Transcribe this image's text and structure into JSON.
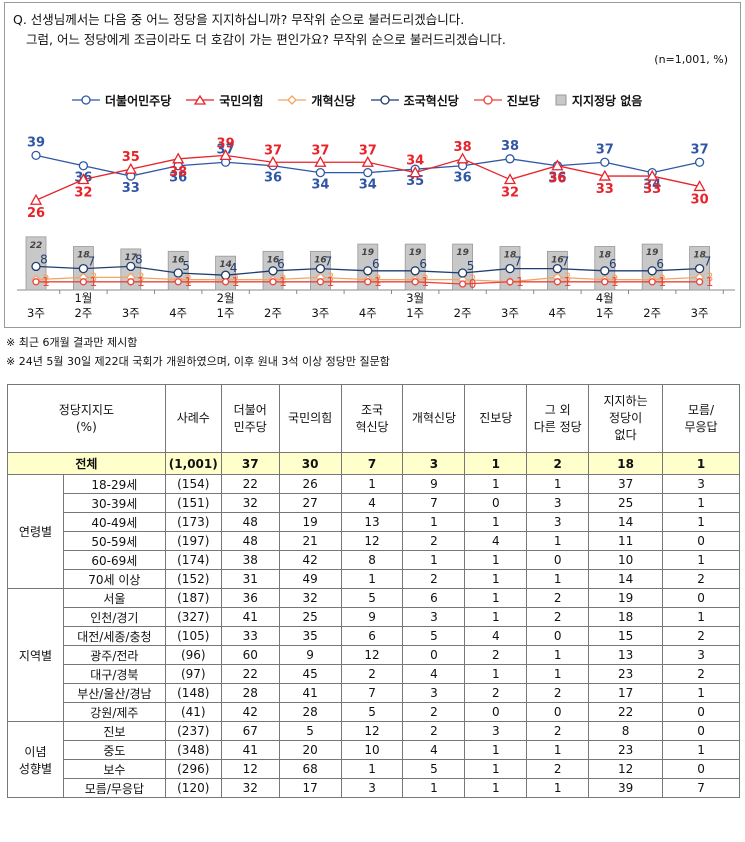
{
  "question": {
    "line1": "Q. 선생님께서는 다음 중 어느 정당을 지지하십니까? 무작위 순으로 불러드리겠습니다.",
    "line2": "그럼, 어느 정당에게 조금이라도 더 호감이 가는 편인가요? 무작위 순으로 불러드리겠습니다.",
    "sample": "(n=1,001, %)"
  },
  "colors": {
    "dem": "#2f57a5",
    "ppp": "#e8232a",
    "reform": "#f4a460",
    "rebuild": "#1f3d6e",
    "progressive": "#e8453c",
    "none": "#c8c8c8"
  },
  "chart_data": {
    "type": "line",
    "x": [
      "3주",
      "2주",
      "3주",
      "4주",
      "1주",
      "2주",
      "3주",
      "4주",
      "1주",
      "2주",
      "3주",
      "4주",
      "1주",
      "2주",
      "3주"
    ],
    "month_labels": [
      {
        "index": 1,
        "label": "1월"
      },
      {
        "index": 4,
        "label": "2월"
      },
      {
        "index": 8,
        "label": "3월"
      },
      {
        "index": 12,
        "label": "4월"
      }
    ],
    "ylim": [
      0,
      42
    ],
    "series": [
      {
        "key": "dem",
        "name": "더불어민주당",
        "marker": "circle",
        "values": [
          39,
          36,
          33,
          36,
          37,
          36,
          34,
          34,
          35,
          36,
          38,
          36,
          37,
          34,
          37
        ]
      },
      {
        "key": "ppp",
        "name": "국민의힘",
        "marker": "triangle",
        "values": [
          26,
          32,
          35,
          38,
          39,
          37,
          37,
          37,
          34,
          38,
          32,
          36,
          33,
          33,
          30
        ]
      },
      {
        "key": "reform",
        "name": "개혁신당",
        "marker": "diamond",
        "values": [
          2,
          3,
          3,
          2,
          2,
          2,
          3,
          2,
          2,
          2,
          1,
          3,
          2,
          2,
          3
        ]
      },
      {
        "key": "rebuild",
        "name": "조국혁신당",
        "marker": "circle-open",
        "values": [
          8,
          7,
          8,
          5,
          4,
          6,
          7,
          6,
          6,
          5,
          7,
          7,
          6,
          6,
          7
        ]
      },
      {
        "key": "progressive",
        "name": "진보당",
        "marker": "circle-small",
        "values": [
          1,
          1,
          1,
          1,
          1,
          1,
          1,
          1,
          1,
          0,
          1,
          1,
          1,
          1,
          1
        ]
      }
    ],
    "bars": {
      "key": "none",
      "name": "지지정당 없음",
      "values": [
        22,
        18,
        17,
        16,
        14,
        16,
        16,
        19,
        19,
        19,
        18,
        16,
        18,
        19,
        18
      ]
    }
  },
  "notes": [
    "※ 최근 6개월 결과만 제시함",
    "※ 24년 5월 30일 제22대 국회가 개원하였으며, 이후 원내 3석 이상 정당만 질문함"
  ],
  "table": {
    "headers": [
      "정당지지도\n(%)",
      "사례수",
      "더불어\n민주당",
      "국민의힘",
      "조국\n혁신당",
      "개혁신당",
      "진보당",
      "그 외\n다른 정당",
      "지지하는\n정당이\n없다",
      "모름/\n무응답"
    ],
    "total": {
      "label": "전체",
      "n": "(1,001)",
      "values": [
        "37",
        "30",
        "7",
        "3",
        "1",
        "2",
        "18",
        "1"
      ]
    },
    "groups": [
      {
        "name": "연령별",
        "rows": [
          {
            "label": "18-29세",
            "n": "(154)",
            "values": [
              "22",
              "26",
              "1",
              "9",
              "1",
              "1",
              "37",
              "3"
            ]
          },
          {
            "label": "30-39세",
            "n": "(151)",
            "values": [
              "32",
              "27",
              "4",
              "7",
              "0",
              "3",
              "25",
              "1"
            ]
          },
          {
            "label": "40-49세",
            "n": "(173)",
            "values": [
              "48",
              "19",
              "13",
              "1",
              "1",
              "3",
              "14",
              "1"
            ]
          },
          {
            "label": "50-59세",
            "n": "(197)",
            "values": [
              "48",
              "21",
              "12",
              "2",
              "4",
              "1",
              "11",
              "0"
            ]
          },
          {
            "label": "60-69세",
            "n": "(174)",
            "values": [
              "38",
              "42",
              "8",
              "1",
              "1",
              "0",
              "10",
              "1"
            ]
          },
          {
            "label": "70세 이상",
            "n": "(152)",
            "values": [
              "31",
              "49",
              "1",
              "2",
              "1",
              "1",
              "14",
              "2"
            ]
          }
        ]
      },
      {
        "name": "지역별",
        "rows": [
          {
            "label": "서울",
            "n": "(187)",
            "values": [
              "36",
              "32",
              "5",
              "6",
              "1",
              "2",
              "19",
              "0"
            ]
          },
          {
            "label": "인천/경기",
            "n": "(327)",
            "values": [
              "41",
              "25",
              "9",
              "3",
              "1",
              "2",
              "18",
              "1"
            ]
          },
          {
            "label": "대전/세종/충청",
            "n": "(105)",
            "values": [
              "33",
              "35",
              "6",
              "5",
              "4",
              "0",
              "15",
              "2"
            ]
          },
          {
            "label": "광주/전라",
            "n": "(96)",
            "values": [
              "60",
              "9",
              "12",
              "0",
              "2",
              "1",
              "13",
              "3"
            ]
          },
          {
            "label": "대구/경북",
            "n": "(97)",
            "values": [
              "22",
              "45",
              "2",
              "4",
              "1",
              "1",
              "23",
              "2"
            ]
          },
          {
            "label": "부산/울산/경남",
            "n": "(148)",
            "values": [
              "28",
              "41",
              "7",
              "3",
              "2",
              "2",
              "17",
              "1"
            ]
          },
          {
            "label": "강원/제주",
            "n": "(41)",
            "values": [
              "42",
              "28",
              "5",
              "2",
              "0",
              "0",
              "22",
              "0"
            ]
          }
        ]
      },
      {
        "name": "이념\n성향별",
        "rows": [
          {
            "label": "진보",
            "n": "(237)",
            "values": [
              "67",
              "5",
              "12",
              "2",
              "3",
              "2",
              "8",
              "0"
            ]
          },
          {
            "label": "중도",
            "n": "(348)",
            "values": [
              "41",
              "20",
              "10",
              "4",
              "1",
              "1",
              "23",
              "1"
            ]
          },
          {
            "label": "보수",
            "n": "(296)",
            "values": [
              "12",
              "68",
              "1",
              "5",
              "1",
              "2",
              "12",
              "0"
            ]
          },
          {
            "label": "모름/무응답",
            "n": "(120)",
            "values": [
              "32",
              "17",
              "3",
              "1",
              "1",
              "1",
              "39",
              "7"
            ]
          }
        ]
      }
    ]
  }
}
